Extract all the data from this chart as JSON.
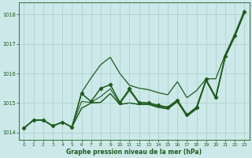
{
  "title": "Graphe pression niveau de la mer (hPa)",
  "bg_color": "#cce8e8",
  "line_color": "#1e5c1e",
  "grid_color": "#aacece",
  "xlim": [
    -0.5,
    23.5
  ],
  "ylim": [
    1013.75,
    1018.4
  ],
  "yticks": [
    1014,
    1015,
    1016,
    1017,
    1018
  ],
  "xticks": [
    0,
    1,
    2,
    3,
    4,
    5,
    6,
    7,
    8,
    9,
    10,
    11,
    12,
    13,
    14,
    15,
    16,
    17,
    18,
    19,
    20,
    21,
    22,
    23
  ],
  "series": [
    [
      1014.15,
      1014.4,
      1014.4,
      1014.2,
      1014.35,
      1014.2,
      1015.35,
      1015.05,
      1015.5,
      1015.65,
      1015.05,
      1015.5,
      1015.05,
      1015.0,
      1014.95,
      1014.88,
      1015.1,
      1014.62,
      1014.88,
      1015.82,
      1015.22,
      1016.62,
      1017.32,
      1018.12
    ],
    [
      1014.15,
      1014.4,
      1014.4,
      1014.2,
      1014.35,
      1014.2,
      1015.05,
      1015.0,
      1015.25,
      1015.5,
      1015.0,
      1015.42,
      1015.0,
      1015.0,
      1014.9,
      1014.85,
      1015.08,
      1014.6,
      1014.85,
      1015.8,
      1015.2,
      1016.6,
      1017.3,
      1018.1
    ],
    [
      1014.15,
      1014.4,
      1014.4,
      1014.2,
      1014.35,
      1014.2,
      1014.85,
      1015.02,
      1015.05,
      1015.35,
      1014.98,
      1015.02,
      1014.98,
      1014.98,
      1014.88,
      1014.82,
      1015.06,
      1014.58,
      1014.82,
      1015.78,
      1015.18,
      1016.58,
      1017.28,
      1018.08
    ],
    [
      1014.15,
      1014.4,
      1014.4,
      1014.2,
      1014.35,
      1014.2,
      1014.85,
      1015.02,
      1015.05,
      1015.35,
      1014.98,
      1015.02,
      1014.98,
      1014.98,
      1014.88,
      1014.82,
      1015.06,
      1014.58,
      1014.82,
      1015.78,
      1015.18,
      1016.58,
      1017.28,
      1018.08
    ]
  ],
  "steep_line": [
    1014.15,
    1014.4,
    1014.4,
    1014.2,
    1014.35,
    1014.2,
    1015.35,
    1015.8,
    1016.25,
    1016.7,
    1016.1,
    1015.55,
    1015.5,
    1015.45,
    1015.35,
    1015.3,
    1015.75,
    1015.2,
    1015.45,
    1015.82,
    1015.82,
    1016.65,
    1017.35,
    1018.15
  ],
  "main_y": [
    1014.15,
    1014.4,
    1014.4,
    1014.2,
    1014.35,
    1014.2,
    1015.35,
    1015.05,
    1015.5,
    1015.65,
    1015.05,
    1015.5,
    1015.05,
    1015.0,
    1014.95,
    1014.88,
    1015.1,
    1014.62,
    1014.88,
    1015.82,
    1015.22,
    1016.62,
    1017.32,
    1018.12
  ]
}
